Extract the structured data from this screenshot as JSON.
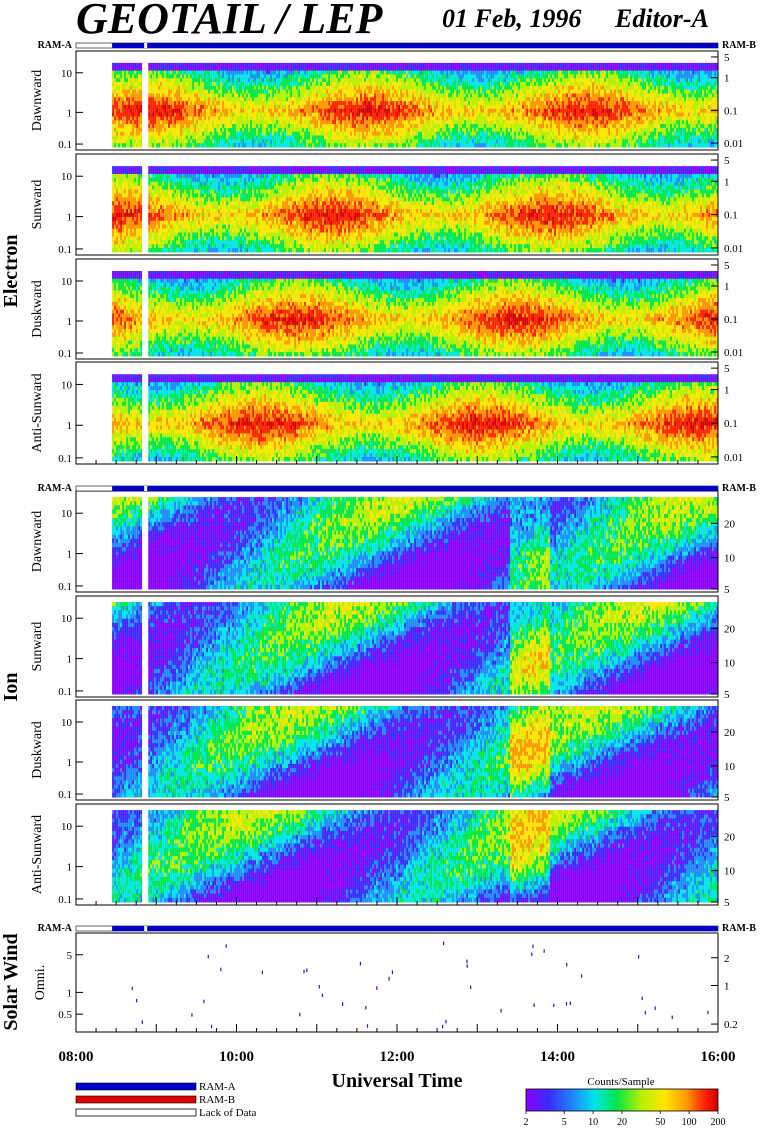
{
  "header": {
    "title": "GEOTAIL / LEP",
    "date": "01 Feb, 1996",
    "editor": "Editor-A"
  },
  "chart_data": {
    "type": "heatmap",
    "xaxis": {
      "label": "Universal Time",
      "ticks": [
        "08:00",
        "10:00",
        "12:00",
        "14:00",
        "16:00"
      ],
      "range_hours": [
        8,
        16
      ]
    },
    "data_start_hour": 8.45,
    "gap_hour": 8.85,
    "ram_labels": {
      "left": "RAM-A",
      "right": "RAM-B"
    },
    "groups": [
      {
        "name": "Electron",
        "panels": [
          {
            "name": "Dawnward",
            "left_ticks": [
              "10",
              "1",
              "0.1"
            ],
            "right_ticks": [
              "5",
              "1",
              "0.1",
              "0.01"
            ]
          },
          {
            "name": "Sunward",
            "left_ticks": [
              "10",
              "1",
              "0.1"
            ],
            "right_ticks": [
              "5",
              "1",
              "0.1",
              "0.01"
            ]
          },
          {
            "name": "Duskward",
            "left_ticks": [
              "10",
              "1",
              "0.1"
            ],
            "right_ticks": [
              "5",
              "1",
              "0.1",
              "0.01"
            ]
          },
          {
            "name": "Anti-Sunward",
            "left_ticks": [
              "10",
              "1",
              "0.1"
            ],
            "right_ticks": [
              "5",
              "1",
              "0.1",
              "0.01"
            ]
          }
        ]
      },
      {
        "name": "Ion",
        "panels": [
          {
            "name": "Dawnward",
            "left_ticks": [
              "10",
              "1",
              "0.1"
            ],
            "right_ticks": [
              "20",
              "10",
              "5"
            ]
          },
          {
            "name": "Sunward",
            "left_ticks": [
              "10",
              "1",
              "0.1"
            ],
            "right_ticks": [
              "20",
              "10",
              "5"
            ]
          },
          {
            "name": "Duskward",
            "left_ticks": [
              "10",
              "1",
              "0.1"
            ],
            "right_ticks": [
              "20",
              "10",
              "5"
            ]
          },
          {
            "name": "Anti-Sunward",
            "left_ticks": [
              "10",
              "1",
              "0.1"
            ],
            "right_ticks": [
              "20",
              "10",
              "5"
            ]
          }
        ]
      },
      {
        "name": "Solar Wind",
        "panels": [
          {
            "name": "Omni.",
            "left_ticks": [
              "5",
              "1",
              "0.5"
            ],
            "right_ticks": [
              "2",
              "1",
              "0.2"
            ]
          }
        ]
      }
    ],
    "legend": {
      "ram_a": "RAM-A",
      "ram_b": "RAM-B",
      "lack": "Lack of Data",
      "colorbar_title": "Counts/Sample",
      "colorbar_ticks": [
        "2",
        "5",
        "10",
        "20",
        "50",
        "100",
        "200"
      ]
    },
    "colors": {
      "ram_a": "#0000c8",
      "ram_b": "#e00000",
      "colorscale": [
        "#8a00ff",
        "#3c2bff",
        "#1e8cff",
        "#00e6e6",
        "#00e64c",
        "#b4f000",
        "#ffe600",
        "#ff9600",
        "#ff2200",
        "#d00000"
      ]
    }
  }
}
